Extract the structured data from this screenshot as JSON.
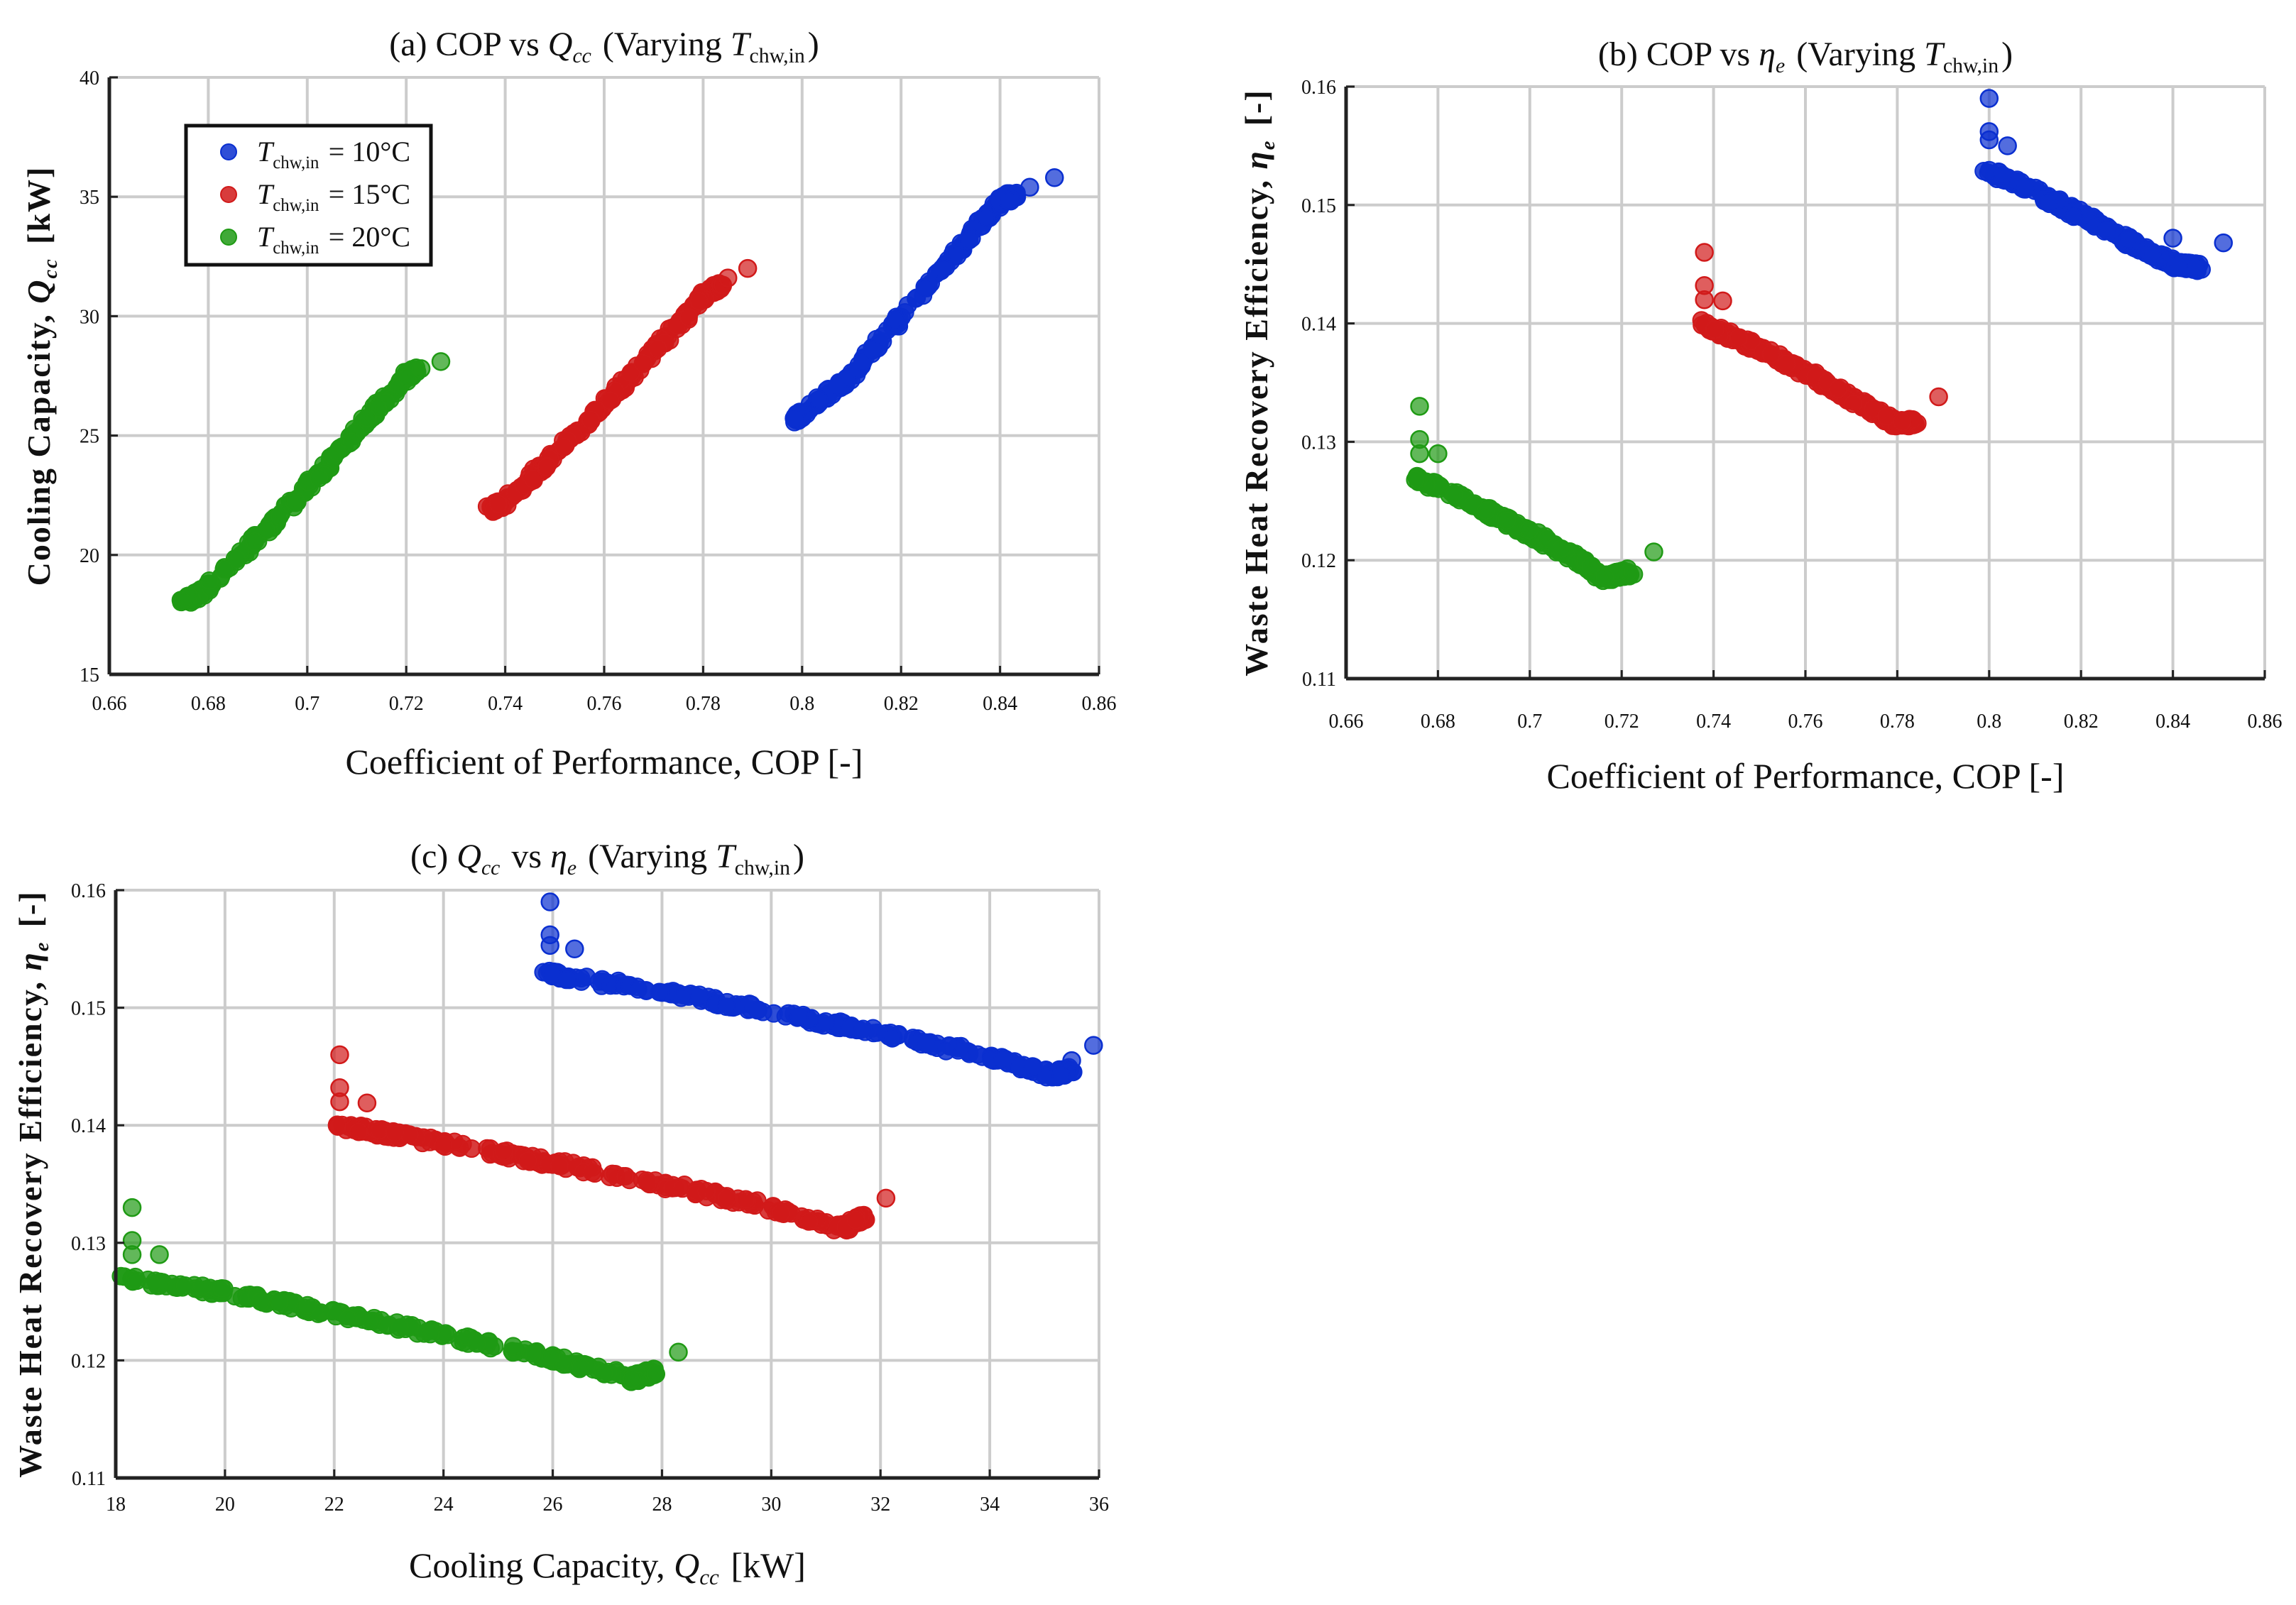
{
  "colors": {
    "series": [
      "#0a2fd0",
      "#d11a1a",
      "#1f9a14"
    ],
    "grid": "#cccccc",
    "axis": "#222222"
  },
  "legend": {
    "labels": [
      "T_chw,in = 10°C",
      "T_chw,in = 15°C",
      "T_chw,in = 20°C"
    ],
    "placement": "top-left (panel a)"
  },
  "chart_data": [
    {
      "id": "a",
      "type": "scatter",
      "title": "(a) COP vs Q_cc (Varying T_chw,in)",
      "xlabel": "Coefficient of Performance, COP [-]",
      "ylabel": "Cooling Capacity, Q_cc [kW]",
      "xlim": [
        0.66,
        0.86
      ],
      "ylim": [
        15,
        40
      ],
      "xticks": [
        0.66,
        0.68,
        0.7,
        0.72,
        0.74,
        0.76,
        0.78,
        0.8,
        0.82,
        0.84,
        0.86
      ],
      "xtick_labels": [
        "0.66",
        "0.68",
        "0.7",
        "0.72",
        "0.74",
        "0.76",
        "0.78",
        "0.8",
        "0.82",
        "0.84",
        "0.86"
      ],
      "yticks": [
        15,
        20,
        25,
        30,
        35,
        40
      ],
      "ytick_labels": [
        "15",
        "20",
        "25",
        "30",
        "35",
        "40"
      ],
      "grid": true,
      "series": [
        {
          "name": "T_chw,in = 10°C",
          "band": [
            [
              0.799,
              25.7
            ],
            [
              0.8,
              25.9
            ],
            [
              0.81,
              27.5
            ],
            [
              0.82,
              30.0
            ],
            [
              0.83,
              32.4
            ],
            [
              0.84,
              34.8
            ],
            [
              0.843,
              35.1
            ]
          ],
          "outliers": [
            [
              0.846,
              35.4
            ],
            [
              0.851,
              35.8
            ]
          ]
        },
        {
          "name": "T_chw,in = 15°C",
          "band": [
            [
              0.737,
              21.9
            ],
            [
              0.74,
              22.2
            ],
            [
              0.75,
              24.2
            ],
            [
              0.76,
              26.3
            ],
            [
              0.77,
              28.5
            ],
            [
              0.78,
              30.8
            ],
            [
              0.784,
              31.4
            ]
          ],
          "outliers": [
            [
              0.785,
              31.6
            ],
            [
              0.789,
              32.0
            ]
          ]
        },
        {
          "name": "T_chw,in = 20°C",
          "band": [
            [
              0.675,
              18.0
            ],
            [
              0.68,
              18.6
            ],
            [
              0.69,
              20.7
            ],
            [
              0.7,
              22.8
            ],
            [
              0.71,
              25.2
            ],
            [
              0.72,
              27.5
            ],
            [
              0.722,
              27.7
            ]
          ],
          "outliers": [
            [
              0.723,
              27.8
            ],
            [
              0.727,
              28.1
            ]
          ]
        }
      ]
    },
    {
      "id": "b",
      "type": "scatter",
      "title": "(b) COP vs η_e (Varying T_chw,in)",
      "xlabel": "Coefficient of Performance, COP [-]",
      "ylabel": "Waste Heat Recovery Efficiency, η_e [-]",
      "xlim": [
        0.66,
        0.86
      ],
      "ylim": [
        0.11,
        0.16
      ],
      "xticks": [
        0.66,
        0.68,
        0.7,
        0.72,
        0.74,
        0.76,
        0.78,
        0.8,
        0.82,
        0.84,
        0.86
      ],
      "xtick_labels": [
        "0.66",
        "0.68",
        "0.7",
        "0.72",
        "0.74",
        "0.76",
        "0.78",
        "0.8",
        "0.82",
        "0.84",
        "0.86"
      ],
      "yticks": [
        0.11,
        0.12,
        0.13,
        0.14,
        0.15,
        0.16
      ],
      "ytick_labels": [
        "0.11",
        "0.12",
        "0.13",
        "0.14",
        "0.15",
        "0.16"
      ],
      "grid": true,
      "series": [
        {
          "name": "T_chw,in = 10°C",
          "band": [
            [
              0.799,
              0.153
            ],
            [
              0.81,
              0.1511
            ],
            [
              0.82,
              0.1491
            ],
            [
              0.83,
              0.147
            ],
            [
              0.84,
              0.145
            ],
            [
              0.846,
              0.1447
            ]
          ],
          "outliers": [
            [
              0.8,
              0.159
            ],
            [
              0.8,
              0.1562
            ],
            [
              0.8,
              0.1555
            ],
            [
              0.804,
              0.155
            ],
            [
              0.84,
              0.1472
            ],
            [
              0.851,
              0.1468
            ]
          ]
        },
        {
          "name": "T_chw,in = 15°C",
          "band": [
            [
              0.737,
              0.14
            ],
            [
              0.75,
              0.1379
            ],
            [
              0.76,
              0.1359
            ],
            [
              0.77,
              0.1337
            ],
            [
              0.78,
              0.1315
            ],
            [
              0.784,
              0.1317
            ]
          ],
          "outliers": [
            [
              0.738,
              0.146
            ],
            [
              0.738,
              0.1432
            ],
            [
              0.738,
              0.142
            ],
            [
              0.742,
              0.1419
            ],
            [
              0.789,
              0.1338
            ]
          ]
        },
        {
          "name": "T_chw,in = 20°C",
          "band": [
            [
              0.675,
              0.127
            ],
            [
              0.69,
              0.1243
            ],
            [
              0.7,
              0.1223
            ],
            [
              0.71,
              0.1202
            ],
            [
              0.716,
              0.1185
            ],
            [
              0.722,
              0.119
            ]
          ],
          "outliers": [
            [
              0.676,
              0.133
            ],
            [
              0.676,
              0.1302
            ],
            [
              0.676,
              0.129
            ],
            [
              0.68,
              0.129
            ],
            [
              0.727,
              0.1207
            ]
          ]
        }
      ]
    },
    {
      "id": "c",
      "type": "scatter",
      "title": "(c) Q_cc vs η_e (Varying T_chw,in)",
      "xlabel": "Cooling Capacity, Q_cc [kW]",
      "ylabel": "Waste Heat Recovery Efficiency, η_e [-]",
      "xlim": [
        18,
        36
      ],
      "ylim": [
        0.11,
        0.16
      ],
      "xticks": [
        18,
        20,
        22,
        24,
        26,
        28,
        30,
        32,
        34,
        36
      ],
      "xtick_labels": [
        "18",
        "20",
        "22",
        "24",
        "26",
        "28",
        "30",
        "32",
        "34",
        "36"
      ],
      "yticks": [
        0.11,
        0.12,
        0.13,
        0.14,
        0.15,
        0.16
      ],
      "ytick_labels": [
        "0.11",
        "0.12",
        "0.13",
        "0.14",
        "0.15",
        "0.16"
      ],
      "grid": true,
      "series": [
        {
          "name": "T_chw,in = 10°C",
          "band": [
            [
              25.8,
              0.153
            ],
            [
              28,
              0.1514
            ],
            [
              30,
              0.1497
            ],
            [
              32,
              0.1478
            ],
            [
              34,
              0.1459
            ],
            [
              35.2,
              0.1442
            ],
            [
              35.5,
              0.1448
            ]
          ],
          "outliers": [
            [
              25.95,
              0.159
            ],
            [
              25.95,
              0.1562
            ],
            [
              25.95,
              0.1553
            ],
            [
              26.4,
              0.155
            ],
            [
              35.5,
              0.1455
            ],
            [
              35.9,
              0.1468
            ]
          ]
        },
        {
          "name": "T_chw,in = 15°C",
          "band": [
            [
              22.0,
              0.14
            ],
            [
              24,
              0.1385
            ],
            [
              26,
              0.1368
            ],
            [
              28,
              0.135
            ],
            [
              30,
              0.133
            ],
            [
              31.3,
              0.1312
            ],
            [
              31.7,
              0.1322
            ]
          ],
          "outliers": [
            [
              22.1,
              0.146
            ],
            [
              22.1,
              0.1432
            ],
            [
              22.1,
              0.142
            ],
            [
              22.6,
              0.1419
            ],
            [
              32.1,
              0.1338
            ]
          ]
        },
        {
          "name": "T_chw,in = 20°C",
          "band": [
            [
              18.0,
              0.127
            ],
            [
              20,
              0.1258
            ],
            [
              22,
              0.124
            ],
            [
              24,
              0.1222
            ],
            [
              26,
              0.1202
            ],
            [
              27.5,
              0.1184
            ],
            [
              27.9,
              0.1192
            ]
          ],
          "outliers": [
            [
              18.3,
              0.133
            ],
            [
              18.3,
              0.1302
            ],
            [
              18.3,
              0.129
            ],
            [
              18.8,
              0.129
            ],
            [
              28.3,
              0.1207
            ]
          ]
        }
      ]
    }
  ]
}
